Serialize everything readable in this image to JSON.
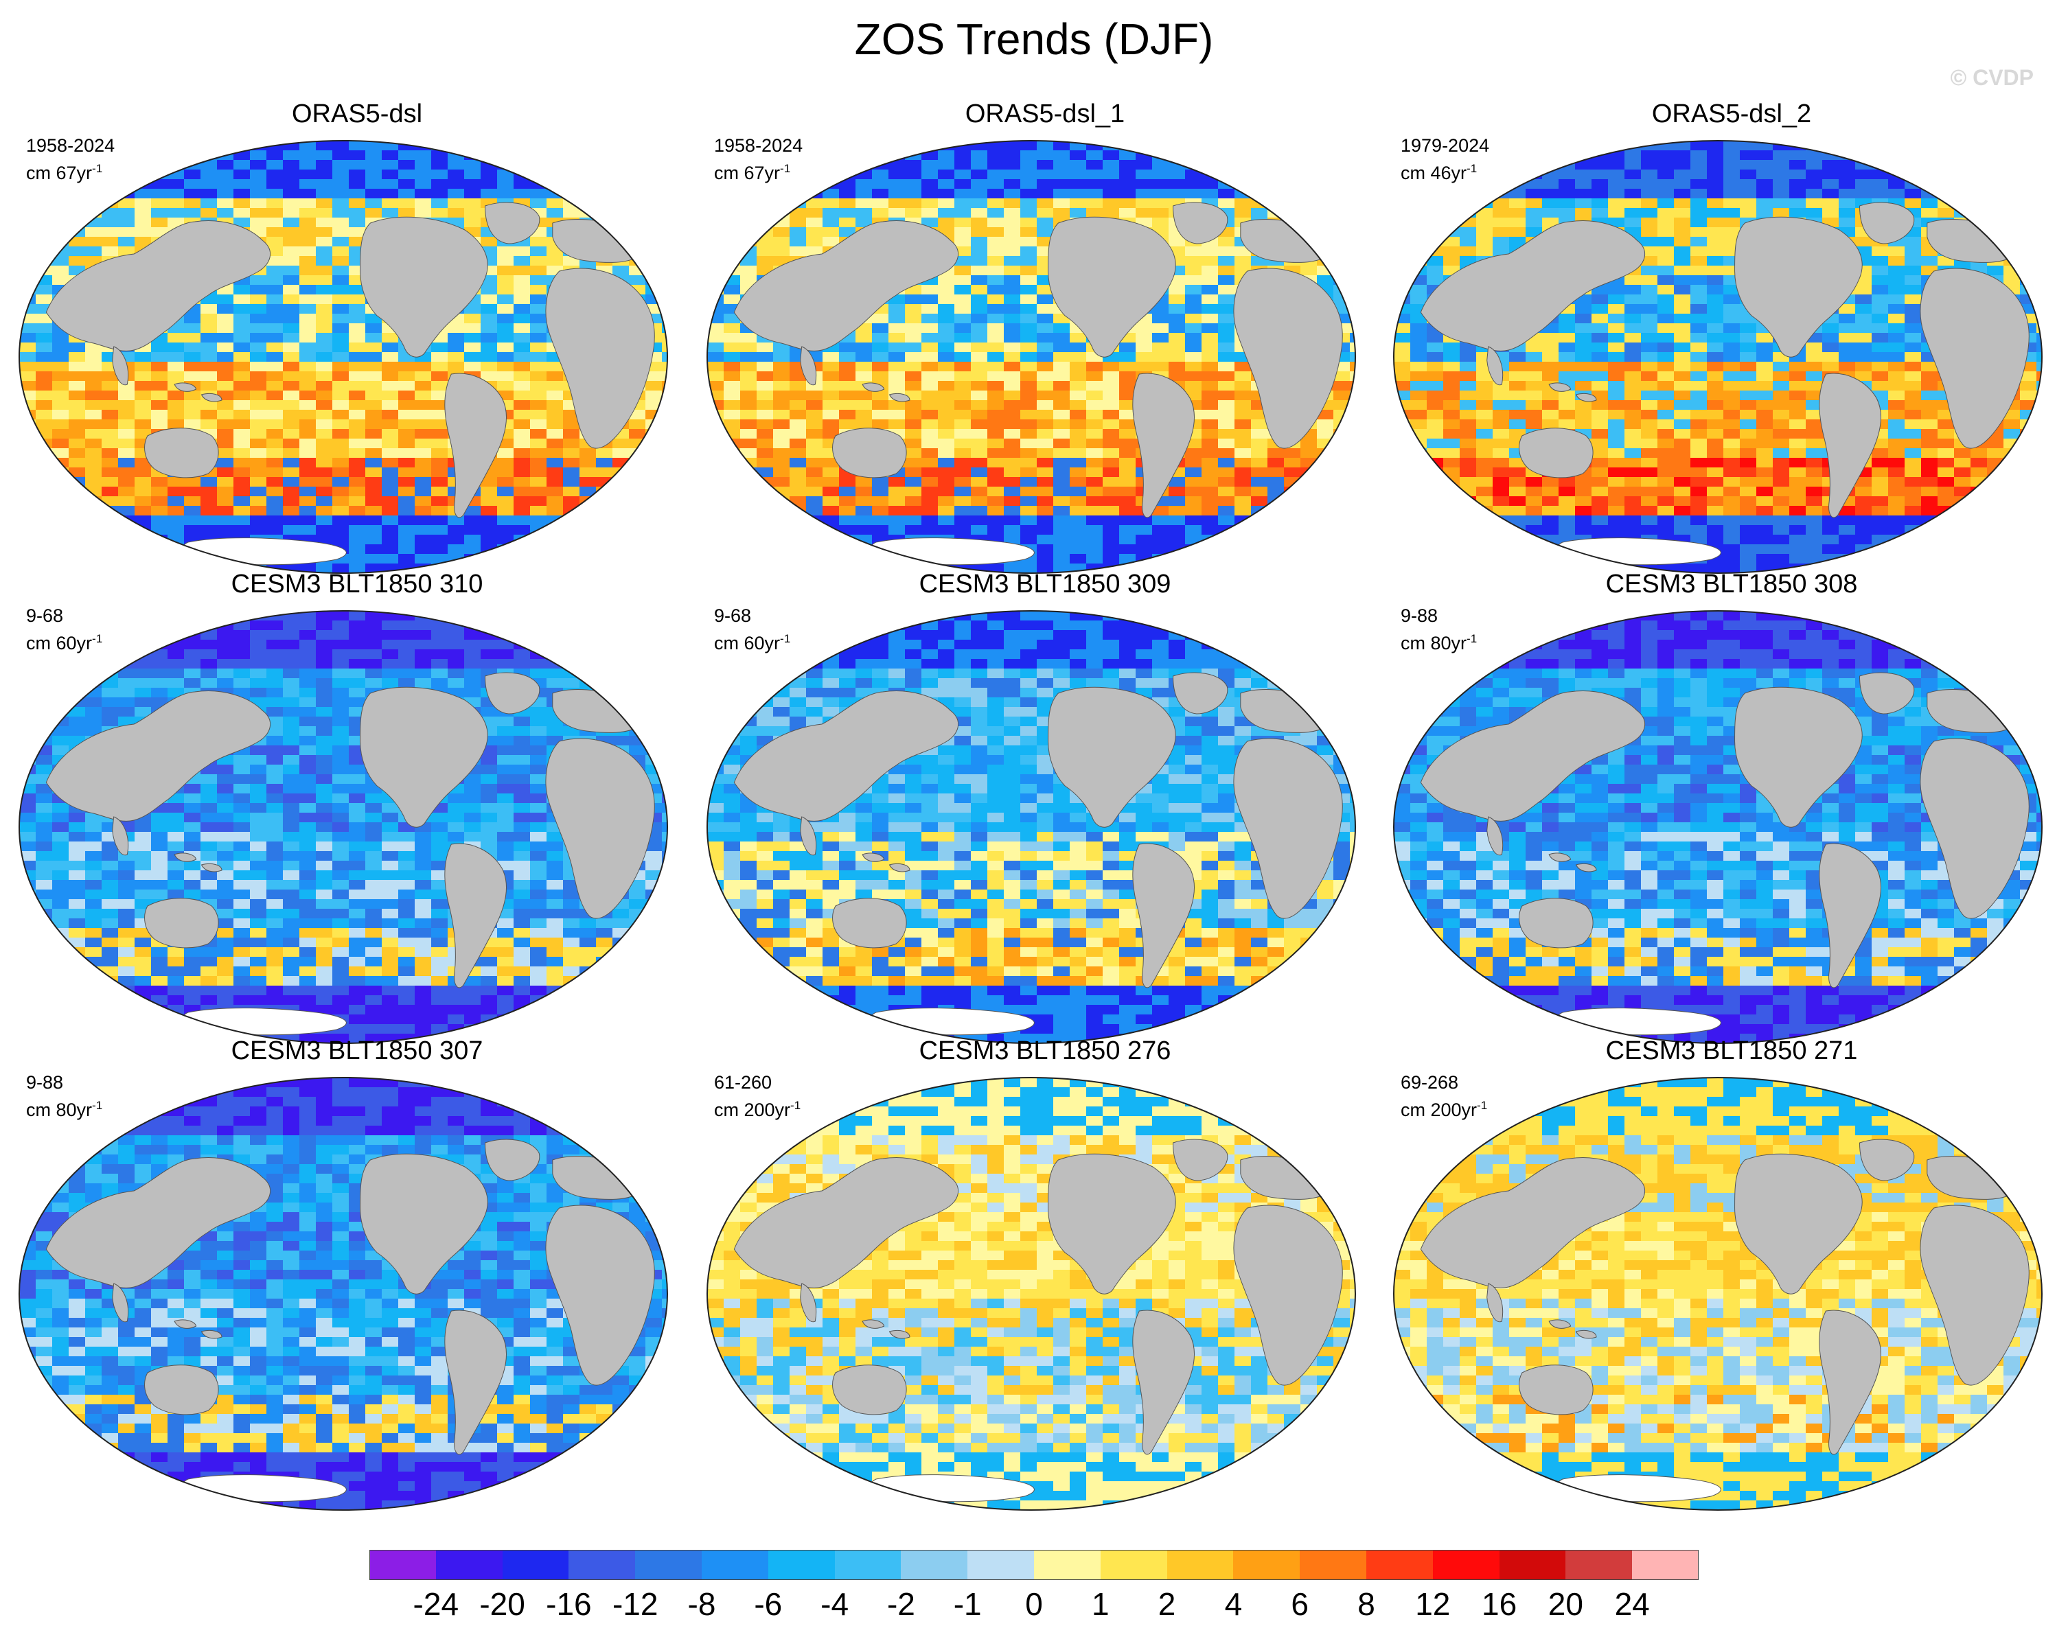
{
  "title": "ZOS Trends (DJF)",
  "copyright": "© CVDP",
  "panels": [
    {
      "title": "ORAS5-dsl",
      "period": "1958-2024",
      "units_prefix": "cm 67yr",
      "units_exp": "-1",
      "pattern": "oras_a"
    },
    {
      "title": "ORAS5-dsl_1",
      "period": "1958-2024",
      "units_prefix": "cm 67yr",
      "units_exp": "-1",
      "pattern": "oras_a"
    },
    {
      "title": "ORAS5-dsl_2",
      "period": "1979-2024",
      "units_prefix": "cm 46yr",
      "units_exp": "-1",
      "pattern": "oras_b"
    },
    {
      "title": "CESM3 BLT1850 310",
      "period": "9-68",
      "units_prefix": "cm 60yr",
      "units_exp": "-1",
      "pattern": "cool"
    },
    {
      "title": "CESM3 BLT1850 309",
      "period": "9-68",
      "units_prefix": "cm 60yr",
      "units_exp": "-1",
      "pattern": "cool_mixed"
    },
    {
      "title": "CESM3 BLT1850 308",
      "period": "9-88",
      "units_prefix": "cm 80yr",
      "units_exp": "-1",
      "pattern": "cool"
    },
    {
      "title": "CESM3 BLT1850 307",
      "period": "9-88",
      "units_prefix": "cm 80yr",
      "units_exp": "-1",
      "pattern": "cool"
    },
    {
      "title": "CESM3 BLT1850 276",
      "period": "61-260",
      "units_prefix": "cm 200yr",
      "units_exp": "-1",
      "pattern": "warm_light"
    },
    {
      "title": "CESM3 BLT1850 271",
      "period": "69-268",
      "units_prefix": "cm 200yr",
      "units_exp": "-1",
      "pattern": "warm"
    }
  ],
  "colorbar": {
    "colors": [
      "#8c1ee6",
      "#3c18f0",
      "#1e28f0",
      "#3c5ae6",
      "#2d78e6",
      "#1e90f5",
      "#14b4f5",
      "#3cbef5",
      "#8ccdf0",
      "#bedff5",
      "#fff8a0",
      "#ffe650",
      "#ffc828",
      "#ffa014",
      "#ff7814",
      "#ff3c14",
      "#ff0a0a",
      "#d20a0a",
      "#d23c3c",
      "#ffb4b4"
    ],
    "labels": [
      "-24",
      "-20",
      "-16",
      "-12",
      "-8",
      "-6",
      "-4",
      "-2",
      "-1",
      "0",
      "1",
      "2",
      "4",
      "6",
      "8",
      "12",
      "16",
      "20",
      "24"
    ]
  },
  "land_color": "#bebebe",
  "outline_color": "#222222"
}
